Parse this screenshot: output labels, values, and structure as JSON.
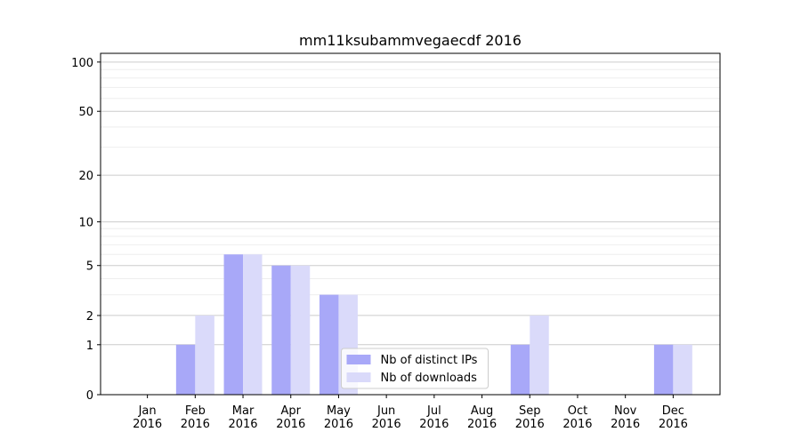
{
  "chart_data": {
    "type": "bar",
    "title": "mm11ksubammvegaecdf 2016",
    "categories": [
      [
        "Jan",
        "2016"
      ],
      [
        "Feb",
        "2016"
      ],
      [
        "Mar",
        "2016"
      ],
      [
        "Apr",
        "2016"
      ],
      [
        "May",
        "2016"
      ],
      [
        "Jun",
        "2016"
      ],
      [
        "Jul",
        "2016"
      ],
      [
        "Aug",
        "2016"
      ],
      [
        "Sep",
        "2016"
      ],
      [
        "Oct",
        "2016"
      ],
      [
        "Nov",
        "2016"
      ],
      [
        "Dec",
        "2016"
      ]
    ],
    "series": [
      {
        "name": "Nb of distinct IPs",
        "color": "#a8a8f8",
        "values": [
          0,
          1,
          6,
          5,
          3,
          0,
          0,
          0,
          1,
          0,
          0,
          1
        ]
      },
      {
        "name": "Nb of downloads",
        "color": "#dadafa",
        "values": [
          0,
          2,
          6,
          5,
          3,
          0,
          0,
          0,
          2,
          0,
          0,
          1
        ]
      }
    ],
    "yscale": "log1p",
    "ylim": [
      0,
      113
    ],
    "yticks": [
      0,
      1,
      2,
      5,
      10,
      20,
      50,
      100
    ],
    "minor_yticks": [
      3,
      4,
      6,
      7,
      8,
      9,
      30,
      40,
      60,
      70,
      80,
      90
    ],
    "grid": true,
    "legend": "lower center"
  }
}
